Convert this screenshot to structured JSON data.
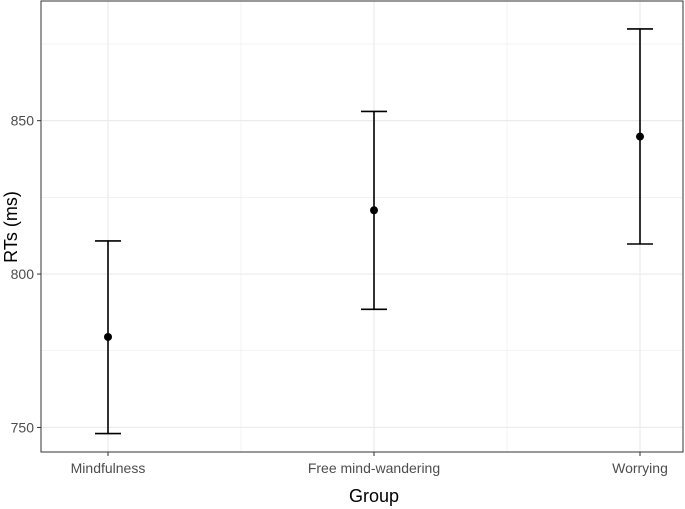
{
  "chart_data": {
    "type": "errorbar",
    "title": "",
    "xlabel": "Group",
    "ylabel": "RTs (ms)",
    "categories": [
      "Mindfulness",
      "Free mind-wandering",
      "Worrying"
    ],
    "series": [
      {
        "mean": [
          779.5,
          820.8,
          844.8
        ],
        "lower": [
          748.0,
          788.5,
          809.8
        ],
        "upper": [
          810.8,
          853.0,
          879.9
        ]
      }
    ],
    "yticks": [
      750,
      800,
      850
    ],
    "ylim": [
      742,
      889
    ],
    "grid": true,
    "legend": "none",
    "colors": {
      "panel_background": "#ffffff",
      "grid": "#ebebeb",
      "panel_border": "#333333",
      "mark": "#000000"
    }
  }
}
